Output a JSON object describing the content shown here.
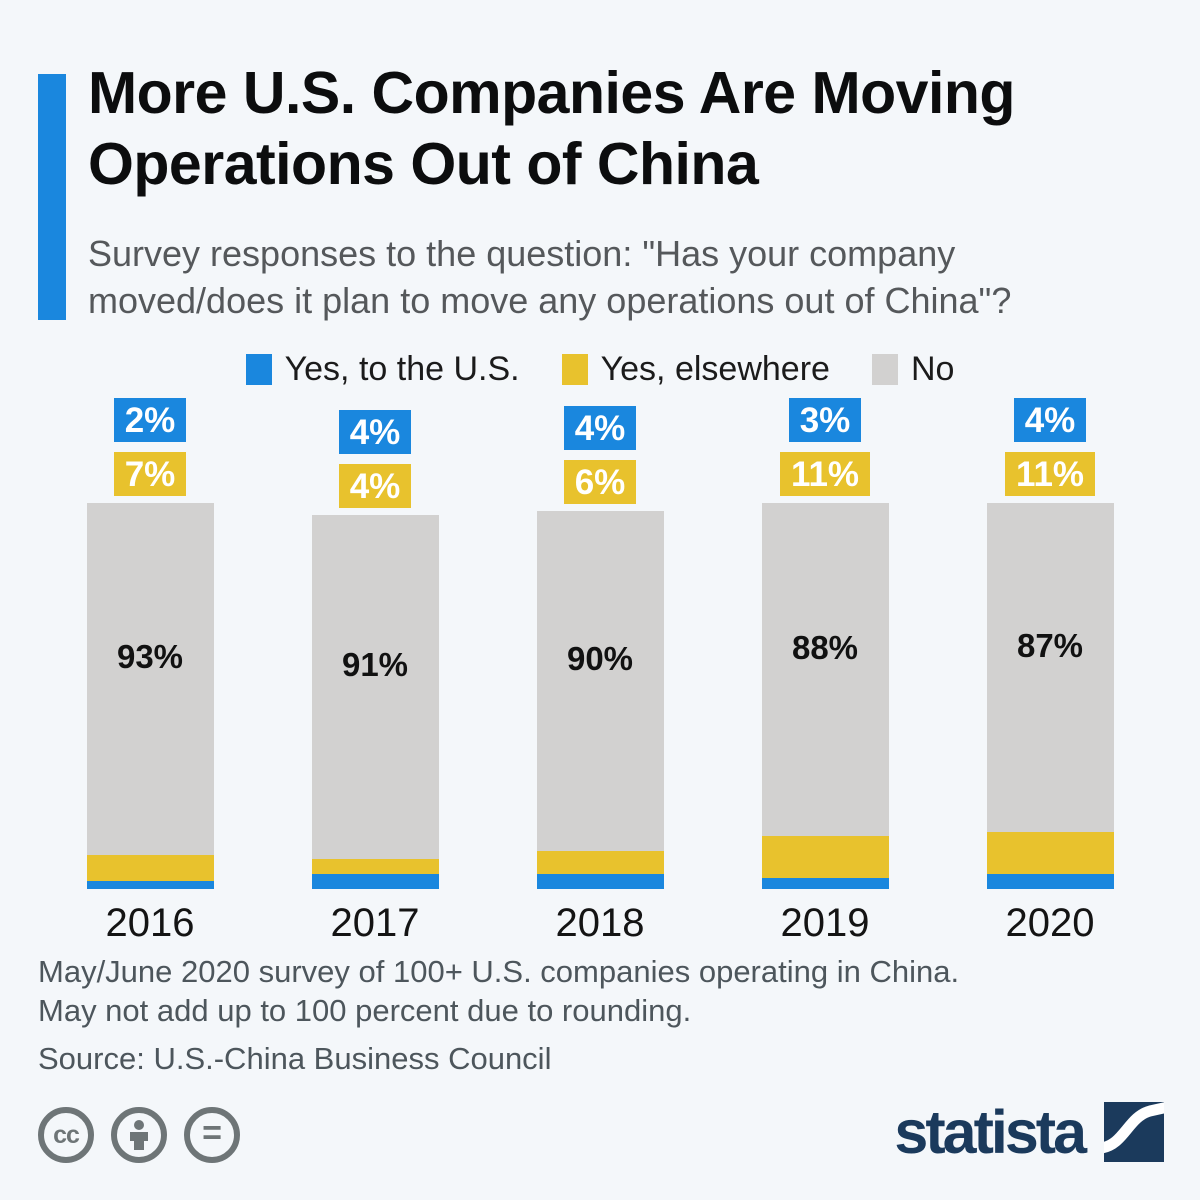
{
  "header": {
    "title": "More U.S. Companies Are Moving Operations Out of China",
    "subtitle": "Survey responses to the question: \"Has your company moved/does it plan to move any operations out of China\"?"
  },
  "chart_data": {
    "type": "bar",
    "stacked": true,
    "unit": "%",
    "title": "More U.S. Companies Are Moving Operations Out of China",
    "categories": [
      "2016",
      "2017",
      "2018",
      "2019",
      "2020"
    ],
    "series": [
      {
        "name": "Yes, to the U.S.",
        "color": "#1a87de",
        "values": [
          2,
          4,
          4,
          3,
          4
        ]
      },
      {
        "name": "Yes, elsewhere",
        "color": "#e8c22d",
        "values": [
          7,
          4,
          6,
          11,
          11
        ]
      },
      {
        "name": "No",
        "color": "#d2d1d0",
        "values": [
          93,
          91,
          90,
          88,
          87
        ]
      }
    ],
    "legend_position": "top",
    "ylim": [
      0,
      102
    ],
    "grid": false
  },
  "footer": {
    "note_line1": "May/June 2020 survey of 100+ U.S. companies operating in China.",
    "note_line2": "May not add up to 100 percent due to rounding.",
    "source": "Source: U.S.-China Business Council"
  },
  "branding": {
    "logo_text": "statista",
    "cc_label": "cc",
    "nd_label": "="
  },
  "colors": {
    "background": "#f4f7fa",
    "accent_bar": "#1a87de",
    "title_text": "#0c0d0e",
    "subtitle_text": "#55585b",
    "footnote_text": "#4d565c",
    "license_icon": "#6e7577",
    "logo_navy": "#1b3a5c",
    "label_text_on_bar": "#ffffff",
    "no_label_text": "#111111"
  }
}
